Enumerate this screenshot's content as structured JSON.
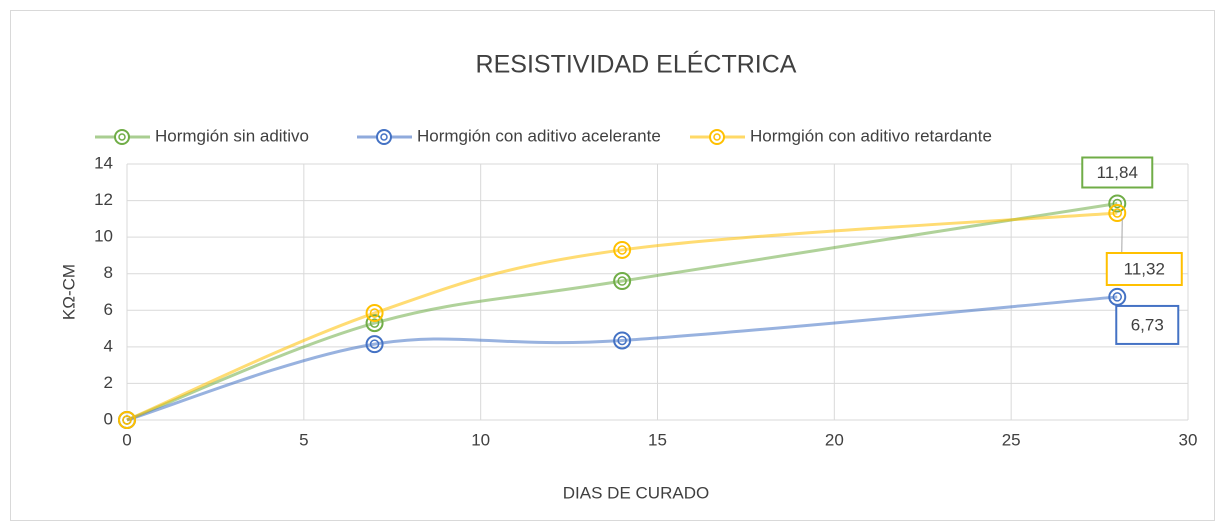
{
  "chart_data": {
    "type": "line",
    "title": "RESISTIVIDAD ELÉCTRICA",
    "x_label": "DIAS DE CURADO",
    "y_label": "KΩ-CM",
    "x": [
      0,
      7,
      14,
      28
    ],
    "series": [
      {
        "name": "Hormgión sin aditivo",
        "color": "#70ad47",
        "values": [
          0,
          5.3,
          7.6,
          11.84
        ],
        "value_labels": [
          null,
          null,
          null,
          "11,84"
        ]
      },
      {
        "name": "Hormgión con aditivo acelerante",
        "color": "#4472c4",
        "values": [
          0,
          4.15,
          4.35,
          6.73
        ],
        "value_labels": [
          null,
          null,
          null,
          "6,73"
        ]
      },
      {
        "name": "Hormgión con aditivo retardante",
        "color": "#ffc000",
        "values": [
          0,
          5.85,
          9.3,
          11.32
        ],
        "value_labels": [
          null,
          null,
          null,
          "11,32"
        ]
      }
    ],
    "xlim": [
      0,
      30
    ],
    "xticks": [
      0,
      5,
      10,
      15,
      20,
      25,
      30
    ],
    "ylim": [
      0,
      14
    ],
    "yticks": [
      0,
      2,
      4,
      6,
      8,
      10,
      12,
      14
    ],
    "grid": true,
    "legend": "top",
    "smooth": true
  }
}
